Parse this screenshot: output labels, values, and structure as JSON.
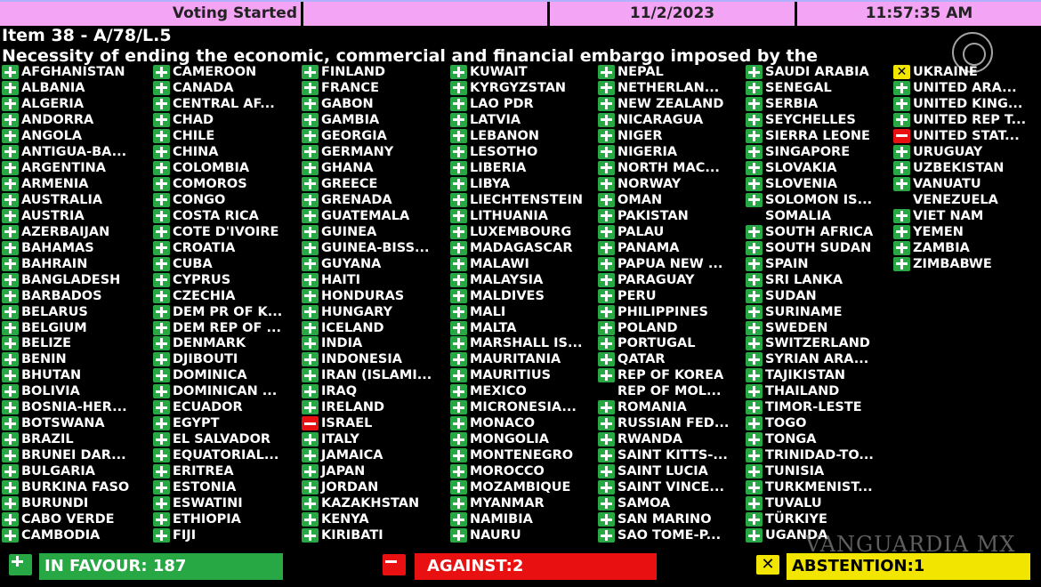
{
  "header": {
    "status": "Voting Started",
    "date": "11/2/2023",
    "time": "11:57:35 AM"
  },
  "item": {
    "title": "Item 38 - A/78/L.5",
    "description": "Necessity of ending the economic, commercial and financial embargo imposed by the"
  },
  "colors": {
    "favour": "#27a844",
    "against": "#e81010",
    "abstention": "#f2e600",
    "header": "#f4a4f4"
  },
  "columns": [
    [
      [
        "AFGHANISTAN",
        "Y"
      ],
      [
        "ALBANIA",
        "Y"
      ],
      [
        "ALGERIA",
        "Y"
      ],
      [
        "ANDORRA",
        "Y"
      ],
      [
        "ANGOLA",
        "Y"
      ],
      [
        "ANTIGUA-BA...",
        "Y"
      ],
      [
        "ARGENTINA",
        "Y"
      ],
      [
        "ARMENIA",
        "Y"
      ],
      [
        "AUSTRALIA",
        "Y"
      ],
      [
        "AUSTRIA",
        "Y"
      ],
      [
        "AZERBAIJAN",
        "Y"
      ],
      [
        "BAHAMAS",
        "Y"
      ],
      [
        "BAHRAIN",
        "Y"
      ],
      [
        "BANGLADESH",
        "Y"
      ],
      [
        "BARBADOS",
        "Y"
      ],
      [
        "BELARUS",
        "Y"
      ],
      [
        "BELGIUM",
        "Y"
      ],
      [
        "BELIZE",
        "Y"
      ],
      [
        "BENIN",
        "Y"
      ],
      [
        "BHUTAN",
        "Y"
      ],
      [
        "BOLIVIA",
        "Y"
      ],
      [
        "BOSNIA-HER...",
        "Y"
      ],
      [
        "BOTSWANA",
        "Y"
      ],
      [
        "BRAZIL",
        "Y"
      ],
      [
        "BRUNEI DAR...",
        "Y"
      ],
      [
        "BULGARIA",
        "Y"
      ],
      [
        "BURKINA FASO",
        "Y"
      ],
      [
        "BURUNDI",
        "Y"
      ],
      [
        "CABO VERDE",
        "Y"
      ],
      [
        "CAMBODIA",
        "Y"
      ]
    ],
    [
      [
        "CAMEROON",
        "Y"
      ],
      [
        "CANADA",
        "Y"
      ],
      [
        "CENTRAL AF...",
        "Y"
      ],
      [
        "CHAD",
        "Y"
      ],
      [
        "CHILE",
        "Y"
      ],
      [
        "CHINA",
        "Y"
      ],
      [
        "COLOMBIA",
        "Y"
      ],
      [
        "COMOROS",
        "Y"
      ],
      [
        "CONGO",
        "Y"
      ],
      [
        "COSTA RICA",
        "Y"
      ],
      [
        "COTE D'IVOIRE",
        "Y"
      ],
      [
        "CROATIA",
        "Y"
      ],
      [
        "CUBA",
        "Y"
      ],
      [
        "CYPRUS",
        "Y"
      ],
      [
        "CZECHIA",
        "Y"
      ],
      [
        "DEM PR OF K...",
        "Y"
      ],
      [
        "DEM REP OF ...",
        "Y"
      ],
      [
        "DENMARK",
        "Y"
      ],
      [
        "DJIBOUTI",
        "Y"
      ],
      [
        "DOMINICA",
        "Y"
      ],
      [
        "DOMINICAN ...",
        "Y"
      ],
      [
        "ECUADOR",
        "Y"
      ],
      [
        "EGYPT",
        "Y"
      ],
      [
        "EL SALVADOR",
        "Y"
      ],
      [
        "EQUATORIAL...",
        "Y"
      ],
      [
        "ERITREA",
        "Y"
      ],
      [
        "ESTONIA",
        "Y"
      ],
      [
        "ESWATINI",
        "Y"
      ],
      [
        "ETHIOPIA",
        "Y"
      ],
      [
        "FIJI",
        "Y"
      ]
    ],
    [
      [
        "FINLAND",
        "Y"
      ],
      [
        "FRANCE",
        "Y"
      ],
      [
        "GABON",
        "Y"
      ],
      [
        "GAMBIA",
        "Y"
      ],
      [
        "GEORGIA",
        "Y"
      ],
      [
        "GERMANY",
        "Y"
      ],
      [
        "GHANA",
        "Y"
      ],
      [
        "GREECE",
        "Y"
      ],
      [
        "GRENADA",
        "Y"
      ],
      [
        "GUATEMALA",
        "Y"
      ],
      [
        "GUINEA",
        "Y"
      ],
      [
        "GUINEA-BISS...",
        "Y"
      ],
      [
        "GUYANA",
        "Y"
      ],
      [
        "HAITI",
        "Y"
      ],
      [
        "HONDURAS",
        "Y"
      ],
      [
        "HUNGARY",
        "Y"
      ],
      [
        "ICELAND",
        "Y"
      ],
      [
        "INDIA",
        "Y"
      ],
      [
        "INDONESIA",
        "Y"
      ],
      [
        "IRAN (ISLAMI...",
        "Y"
      ],
      [
        "IRAQ",
        "Y"
      ],
      [
        "IRELAND",
        "Y"
      ],
      [
        "ISRAEL",
        "N"
      ],
      [
        "ITALY",
        "Y"
      ],
      [
        "JAMAICA",
        "Y"
      ],
      [
        "JAPAN",
        "Y"
      ],
      [
        "JORDAN",
        "Y"
      ],
      [
        "KAZAKHSTAN",
        "Y"
      ],
      [
        "KENYA",
        "Y"
      ],
      [
        "KIRIBATI",
        "Y"
      ]
    ],
    [
      [
        "KUWAIT",
        "Y"
      ],
      [
        "KYRGYZSTAN",
        "Y"
      ],
      [
        "LAO PDR",
        "Y"
      ],
      [
        "LATVIA",
        "Y"
      ],
      [
        "LEBANON",
        "Y"
      ],
      [
        "LESOTHO",
        "Y"
      ],
      [
        "LIBERIA",
        "Y"
      ],
      [
        "LIBYA",
        "Y"
      ],
      [
        "LIECHTENSTEIN",
        "Y"
      ],
      [
        "LITHUANIA",
        "Y"
      ],
      [
        "LUXEMBOURG",
        "Y"
      ],
      [
        "MADAGASCAR",
        "Y"
      ],
      [
        "MALAWI",
        "Y"
      ],
      [
        "MALAYSIA",
        "Y"
      ],
      [
        "MALDIVES",
        "Y"
      ],
      [
        "MALI",
        "Y"
      ],
      [
        "MALTA",
        "Y"
      ],
      [
        "MARSHALL IS...",
        "Y"
      ],
      [
        "MAURITANIA",
        "Y"
      ],
      [
        "MAURITIUS",
        "Y"
      ],
      [
        "MEXICO",
        "Y"
      ],
      [
        "MICRONESIA...",
        "Y"
      ],
      [
        "MONACO",
        "Y"
      ],
      [
        "MONGOLIA",
        "Y"
      ],
      [
        "MONTENEGRO",
        "Y"
      ],
      [
        "MOROCCO",
        "Y"
      ],
      [
        "MOZAMBIQUE",
        "Y"
      ],
      [
        "MYANMAR",
        "Y"
      ],
      [
        "NAMIBIA",
        "Y"
      ],
      [
        "NAURU",
        "Y"
      ]
    ],
    [
      [
        "NEPAL",
        "Y"
      ],
      [
        "NETHERLAN...",
        "Y"
      ],
      [
        "NEW ZEALAND",
        "Y"
      ],
      [
        "NICARAGUA",
        "Y"
      ],
      [
        "NIGER",
        "Y"
      ],
      [
        "NIGERIA",
        "Y"
      ],
      [
        "NORTH MAC...",
        "Y"
      ],
      [
        "NORWAY",
        "Y"
      ],
      [
        "OMAN",
        "Y"
      ],
      [
        "PAKISTAN",
        "Y"
      ],
      [
        "PALAU",
        "Y"
      ],
      [
        "PANAMA",
        "Y"
      ],
      [
        "PAPUA NEW ...",
        "Y"
      ],
      [
        "PARAGUAY",
        "Y"
      ],
      [
        "PERU",
        "Y"
      ],
      [
        "PHILIPPINES",
        "Y"
      ],
      [
        "POLAND",
        "Y"
      ],
      [
        "PORTUGAL",
        "Y"
      ],
      [
        "QATAR",
        "Y"
      ],
      [
        "REP OF KOREA",
        "Y"
      ],
      [
        "REP OF MOL...",
        ""
      ],
      [
        "ROMANIA",
        "Y"
      ],
      [
        "RUSSIAN FED...",
        "Y"
      ],
      [
        "RWANDA",
        "Y"
      ],
      [
        "SAINT KITTS-...",
        "Y"
      ],
      [
        "SAINT LUCIA",
        "Y"
      ],
      [
        "SAINT VINCE...",
        "Y"
      ],
      [
        "SAMOA",
        "Y"
      ],
      [
        "SAN MARINO",
        "Y"
      ],
      [
        "SAO TOME-P...",
        "Y"
      ]
    ],
    [
      [
        "SAUDI ARABIA",
        "Y"
      ],
      [
        "SENEGAL",
        "Y"
      ],
      [
        "SERBIA",
        "Y"
      ],
      [
        "SEYCHELLES",
        "Y"
      ],
      [
        "SIERRA LEONE",
        "Y"
      ],
      [
        "SINGAPORE",
        "Y"
      ],
      [
        "SLOVAKIA",
        "Y"
      ],
      [
        "SLOVENIA",
        "Y"
      ],
      [
        "SOLOMON IS...",
        "Y"
      ],
      [
        "SOMALIA",
        ""
      ],
      [
        "SOUTH AFRICA",
        "Y"
      ],
      [
        "SOUTH SUDAN",
        "Y"
      ],
      [
        "SPAIN",
        "Y"
      ],
      [
        "SRI LANKA",
        "Y"
      ],
      [
        "SUDAN",
        "Y"
      ],
      [
        "SURINAME",
        "Y"
      ],
      [
        "SWEDEN",
        "Y"
      ],
      [
        "SWITZERLAND",
        "Y"
      ],
      [
        "SYRIAN ARA...",
        "Y"
      ],
      [
        "TAJIKISTAN",
        "Y"
      ],
      [
        "THAILAND",
        "Y"
      ],
      [
        "TIMOR-LESTE",
        "Y"
      ],
      [
        "TOGO",
        "Y"
      ],
      [
        "TONGA",
        "Y"
      ],
      [
        "TRINIDAD-TO...",
        "Y"
      ],
      [
        "TUNISIA",
        "Y"
      ],
      [
        "TURKMENIST...",
        "Y"
      ],
      [
        "TUVALU",
        "Y"
      ],
      [
        "TÜRKIYE",
        "Y"
      ],
      [
        "UGANDA",
        "Y"
      ]
    ],
    [
      [
        "UKRAINE",
        "A"
      ],
      [
        "UNITED ARA...",
        "Y"
      ],
      [
        "UNITED KING...",
        "Y"
      ],
      [
        "UNITED REP T...",
        "Y"
      ],
      [
        "UNITED STAT...",
        "N"
      ],
      [
        "URUGUAY",
        "Y"
      ],
      [
        "UZBEKISTAN",
        "Y"
      ],
      [
        "VANUATU",
        "Y"
      ],
      [
        "VENEZUELA",
        ""
      ],
      [
        "VIET NAM",
        "Y"
      ],
      [
        "YEMEN",
        "Y"
      ],
      [
        "ZAMBIA",
        "Y"
      ],
      [
        "ZIMBABWE",
        "Y"
      ]
    ]
  ],
  "totals": {
    "favour": "IN FAVOUR: 187",
    "against": "AGAINST:2",
    "abstention": "ABSTENTION:1"
  },
  "watermark": "VANGUARDIA MX"
}
